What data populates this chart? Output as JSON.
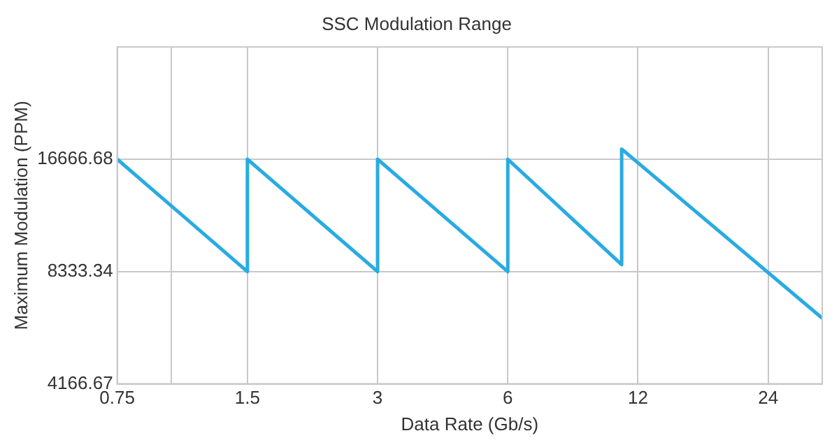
{
  "chart_data": {
    "type": "line",
    "title": "SSC Modulation Range",
    "xlabel": "Data Rate (Gb/s)",
    "ylabel": "Maximum Modulation (PPM)",
    "log": "xy",
    "grid": true,
    "legend": false,
    "marker": "none",
    "line_style": "solid",
    "xlim": [
      0.75,
      32
    ],
    "xticks": [
      0.75,
      {
        "value": 1,
        "label": null
      },
      1.5,
      3,
      6,
      12,
      24
    ],
    "ylim": [
      4166.67,
      33333.36
    ],
    "yticks": [
      4166.67,
      8333.34,
      16666.68
    ],
    "series": [
      {
        "color": "#29abe2",
        "x": [
          0.75,
          1.5,
          1.5,
          3,
          3,
          6,
          6,
          11,
          11,
          32
        ],
        "values": [
          16666.68,
          8333.34,
          16666.68,
          8333.34,
          16666.68,
          8333.34,
          16666.68,
          8700,
          17750,
          6250
        ]
      }
    ]
  }
}
